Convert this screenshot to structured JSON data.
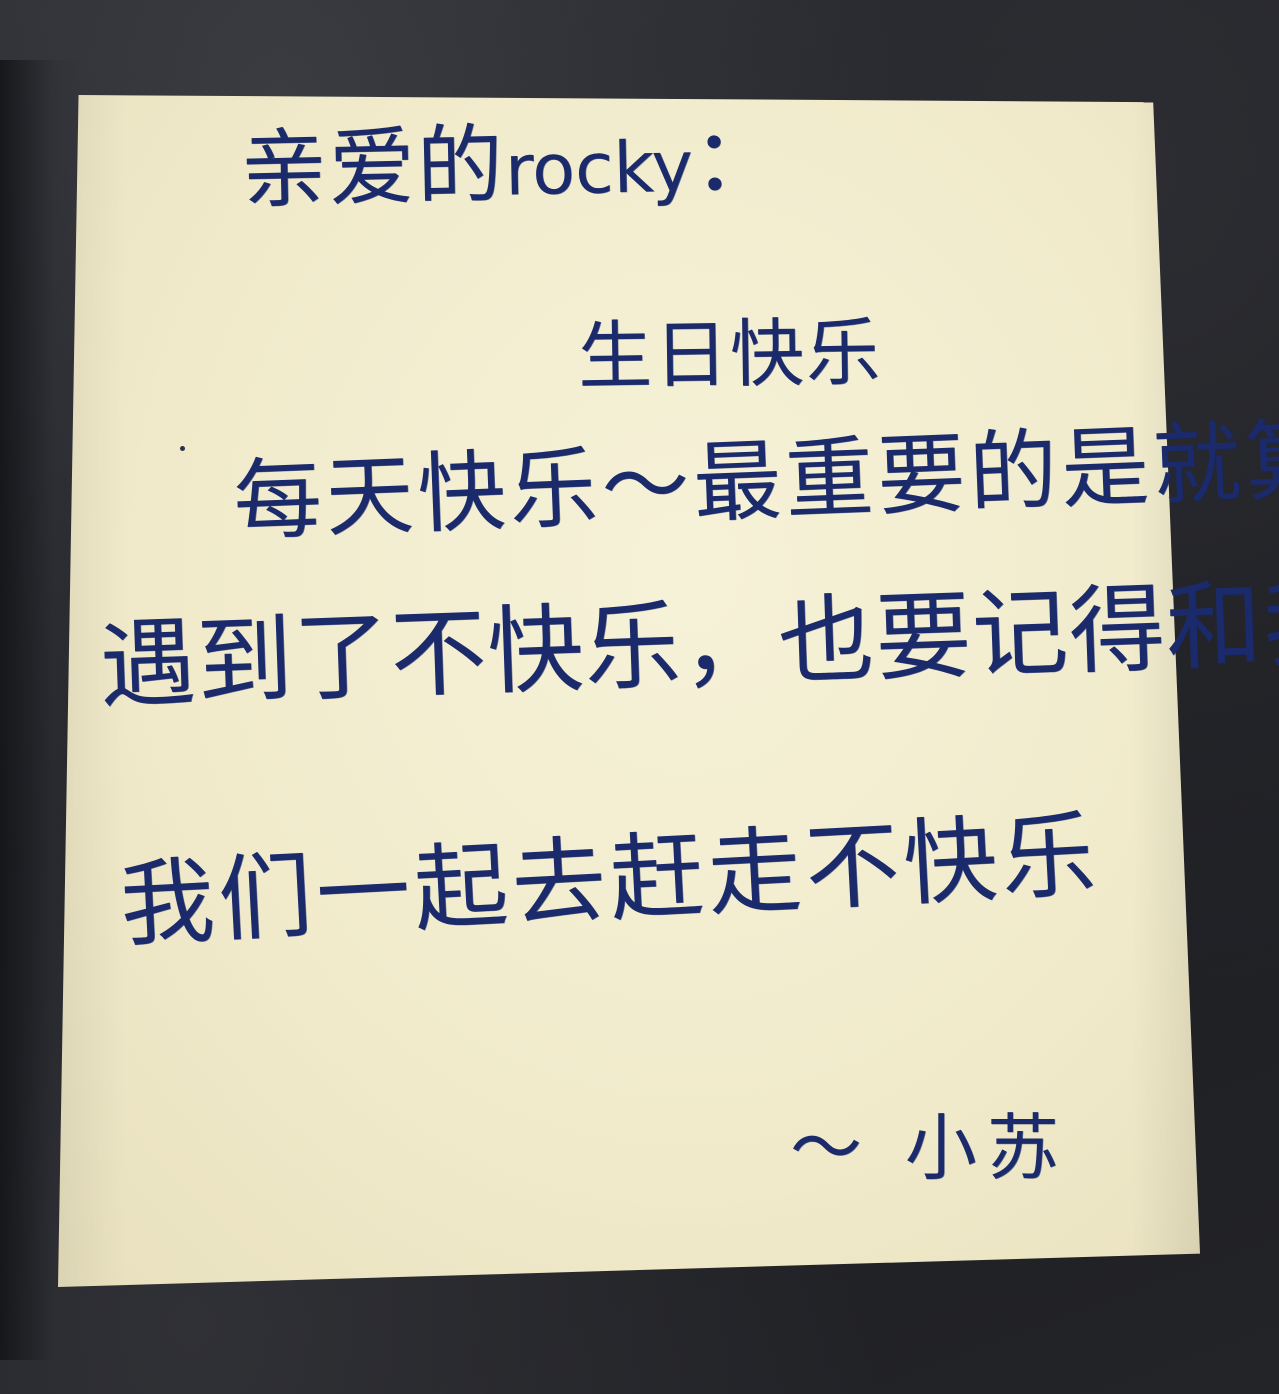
{
  "note": {
    "greeting": {
      "prefix": "亲爱的",
      "name": "rocky",
      "colon": "："
    },
    "line1": "生日快乐",
    "line2": "每天快乐～最重要的是就算",
    "line3": "遇到了不快乐，也要记得和我说",
    "line4": "我们一起去赶走不快乐",
    "signature": "～ 小苏"
  },
  "colors": {
    "ink": "#1b2a6b",
    "paper": "#f3eed2",
    "background": "#1f2024"
  }
}
